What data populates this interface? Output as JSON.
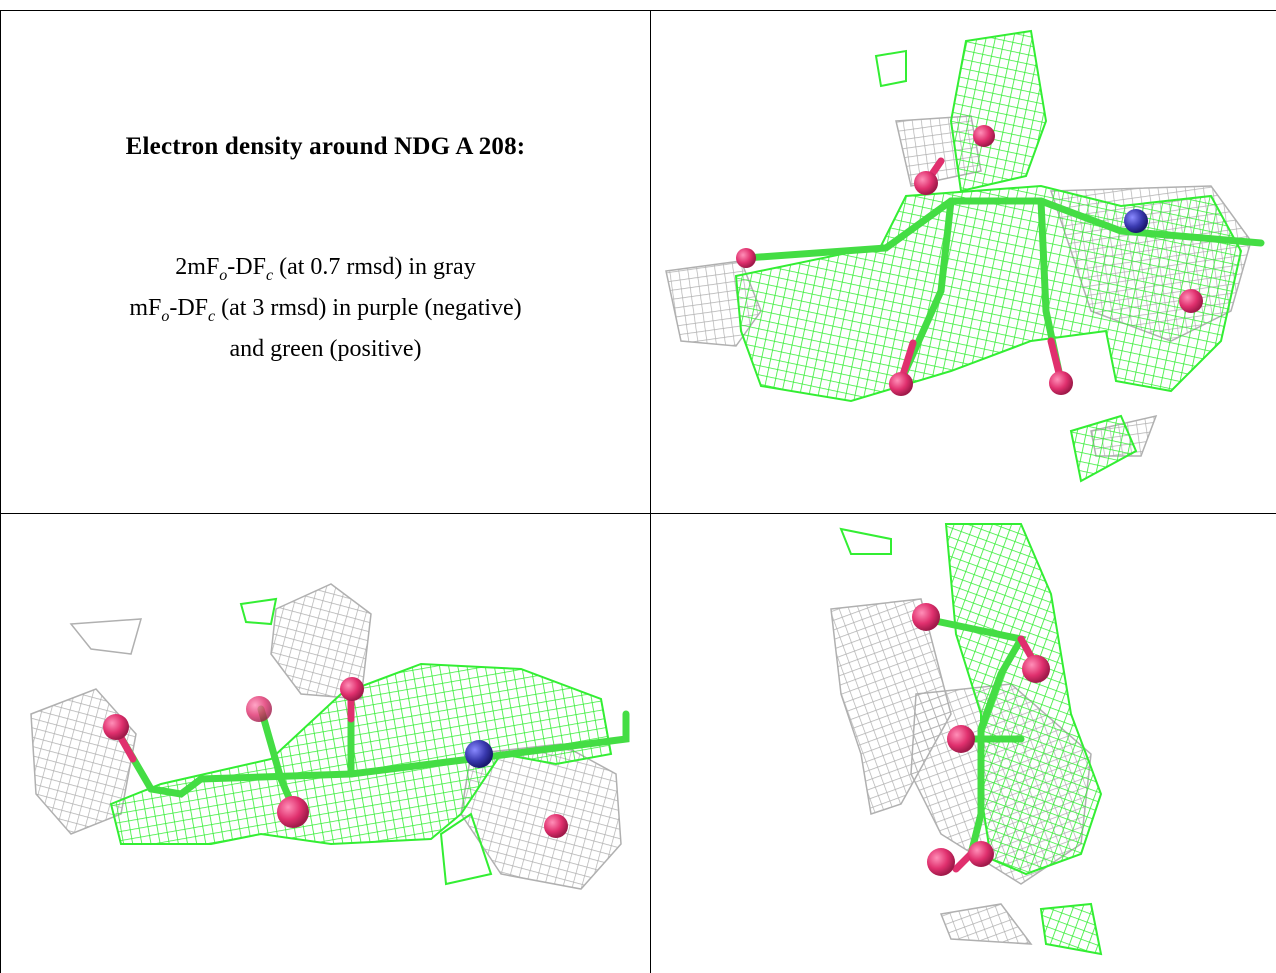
{
  "title": "Electron density around NDG A 208:",
  "legend": {
    "line1": {
      "prefix": "2mF",
      "sub1": "o",
      "mid": "-DF",
      "sub2": "c",
      "suffix": " (at 0.7 rmsd) in gray"
    },
    "line2": {
      "prefix": "mF",
      "sub1": "o",
      "mid": "-DF",
      "sub2": "c",
      "suffix": " (at 3 rmsd) in purple (negative)"
    },
    "line3": "and green (positive)"
  },
  "colors": {
    "positive_mesh": "#33ee33",
    "gray_mesh": "#b8b8b8",
    "oxygen": "#e0306e",
    "nitrogen": "#3a3ab0",
    "carbon": "#44dd44"
  },
  "panels": [
    "density-view-top-right",
    "density-view-bottom-left",
    "density-view-bottom-right"
  ]
}
